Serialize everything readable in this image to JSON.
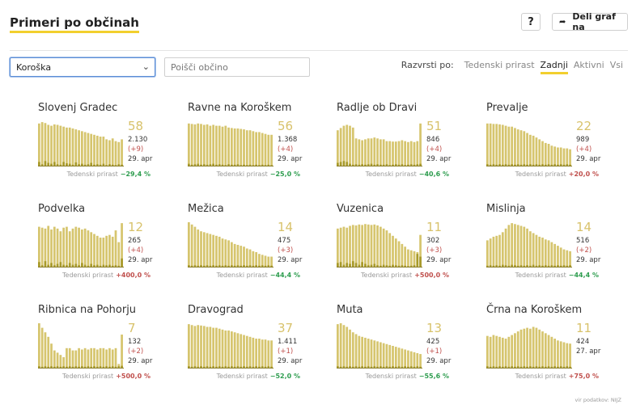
{
  "header": {
    "title": "Primeri po občinah",
    "help_label": "?",
    "share_label": "Deli graf na",
    "share_icon": "share-arrow-icon"
  },
  "filters": {
    "region_value": "Koroška",
    "search_placeholder": "Poišči občino",
    "sort_label": "Razvrsti po:",
    "sort_options": [
      "Tedenski prirast",
      "Zadnji",
      "Aktivni",
      "Vsi"
    ],
    "sort_active": "Zadnji"
  },
  "trend_label": "Tedenski prirast",
  "colors": {
    "bar": "#d6c56e",
    "bar_low": "#a89a2a",
    "accent": "#f2cf2e",
    "down": "#2e9d4f",
    "up": "#c0504d"
  },
  "cards": [
    {
      "name": "Slovenj Gradec",
      "active": "58",
      "total": "2.130",
      "delta": "(+9)",
      "date": "29. apr",
      "trend": "−29,4 %",
      "trend_dir": "down",
      "bars": [
        0.95,
        0.98,
        0.96,
        0.92,
        0.9,
        0.93,
        0.92,
        0.9,
        0.88,
        0.86,
        0.86,
        0.84,
        0.82,
        0.8,
        0.78,
        0.76,
        0.74,
        0.72,
        0.7,
        0.68,
        0.66,
        0.66,
        0.6,
        0.58,
        0.62,
        0.56,
        0.54,
        0.6
      ],
      "low": [
        0.1,
        0.05,
        0.12,
        0.08,
        0.06,
        0.1,
        0.05,
        0.04,
        0.1,
        0.07,
        0.06,
        0.04,
        0.09,
        0.05,
        0.06,
        0.04,
        0.05,
        0.08,
        0.04,
        0.05,
        0.04,
        0.06,
        0.03,
        0.05,
        0.04,
        0.03,
        0.05,
        0.04
      ]
    },
    {
      "name": "Ravne na Koroškem",
      "active": "56",
      "total": "1.368",
      "delta": "(+4)",
      "date": "29. apr",
      "trend": "−25,0 %",
      "trend_dir": "down",
      "bars": [
        0.95,
        0.94,
        0.93,
        0.95,
        0.94,
        0.92,
        0.93,
        0.9,
        0.92,
        0.9,
        0.9,
        0.88,
        0.9,
        0.86,
        0.85,
        0.84,
        0.84,
        0.83,
        0.82,
        0.8,
        0.8,
        0.78,
        0.76,
        0.76,
        0.74,
        0.72,
        0.7,
        0.7
      ],
      "low": [
        0.06,
        0.04,
        0.05,
        0.06,
        0.04,
        0.05,
        0.04,
        0.05,
        0.06,
        0.04,
        0.05,
        0.04,
        0.03,
        0.05,
        0.04,
        0.04,
        0.05,
        0.03,
        0.04,
        0.03,
        0.04,
        0.03,
        0.04,
        0.03,
        0.04,
        0.03,
        0.04,
        0.03
      ]
    },
    {
      "name": "Radlje ob Dravi",
      "active": "51",
      "total": "846",
      "delta": "(+4)",
      "date": "29. apr",
      "trend": "−40,6 %",
      "trend_dir": "down",
      "bars": [
        0.8,
        0.85,
        0.9,
        0.92,
        0.9,
        0.86,
        0.62,
        0.6,
        0.58,
        0.6,
        0.62,
        0.62,
        0.64,
        0.62,
        0.6,
        0.6,
        0.56,
        0.56,
        0.55,
        0.55,
        0.56,
        0.58,
        0.56,
        0.54,
        0.56,
        0.54,
        0.56,
        0.95
      ],
      "low": [
        0.08,
        0.1,
        0.12,
        0.1,
        0.06,
        0.04,
        0.05,
        0.04,
        0.05,
        0.04,
        0.05,
        0.06,
        0.04,
        0.05,
        0.04,
        0.04,
        0.05,
        0.03,
        0.04,
        0.05,
        0.04,
        0.05,
        0.03,
        0.04,
        0.05,
        0.04,
        0.05,
        0.06
      ]
    },
    {
      "name": "Prevalje",
      "active": "22",
      "total": "989",
      "delta": "(+4)",
      "date": "29. apr",
      "trend": "+20,0 %",
      "trend_dir": "up",
      "bars": [
        0.95,
        0.95,
        0.94,
        0.94,
        0.93,
        0.92,
        0.9,
        0.88,
        0.88,
        0.85,
        0.82,
        0.8,
        0.78,
        0.74,
        0.7,
        0.68,
        0.64,
        0.6,
        0.56,
        0.52,
        0.5,
        0.46,
        0.44,
        0.42,
        0.42,
        0.4,
        0.4,
        0.38
      ],
      "low": [
        0.05,
        0.04,
        0.05,
        0.04,
        0.05,
        0.04,
        0.05,
        0.04,
        0.05,
        0.04,
        0.05,
        0.04,
        0.05,
        0.04,
        0.05,
        0.04,
        0.05,
        0.04,
        0.05,
        0.04,
        0.05,
        0.04,
        0.05,
        0.04,
        0.05,
        0.04,
        0.05,
        0.04
      ]
    },
    {
      "name": "Podvelka",
      "active": "12",
      "total": "265",
      "delta": "(+4)",
      "date": "29. apr",
      "trend": "+400,0 %",
      "trend_dir": "up",
      "bars": [
        0.9,
        0.88,
        0.86,
        0.92,
        0.84,
        0.9,
        0.86,
        0.8,
        0.88,
        0.9,
        0.8,
        0.86,
        0.9,
        0.88,
        0.84,
        0.86,
        0.82,
        0.78,
        0.74,
        0.7,
        0.66,
        0.66,
        0.7,
        0.72,
        0.68,
        0.82,
        0.56,
        0.98
      ],
      "low": [
        0.12,
        0.05,
        0.14,
        0.06,
        0.1,
        0.05,
        0.08,
        0.12,
        0.06,
        0.05,
        0.1,
        0.06,
        0.08,
        0.05,
        0.1,
        0.06,
        0.04,
        0.08,
        0.05,
        0.06,
        0.04,
        0.06,
        0.05,
        0.06,
        0.04,
        0.05,
        0.04,
        0.2
      ]
    },
    {
      "name": "Mežica",
      "active": "14",
      "total": "475",
      "delta": "(+3)",
      "date": "29. apr",
      "trend": "−44,4 %",
      "trend_dir": "down",
      "bars": [
        1.0,
        0.95,
        0.9,
        0.84,
        0.8,
        0.78,
        0.76,
        0.74,
        0.72,
        0.7,
        0.68,
        0.64,
        0.62,
        0.6,
        0.56,
        0.52,
        0.5,
        0.48,
        0.46,
        0.42,
        0.4,
        0.36,
        0.34,
        0.3,
        0.28,
        0.26,
        0.24,
        0.24
      ],
      "low": [
        0.05,
        0.04,
        0.05,
        0.04,
        0.05,
        0.04,
        0.05,
        0.04,
        0.05,
        0.04,
        0.05,
        0.04,
        0.05,
        0.04,
        0.05,
        0.04,
        0.05,
        0.04,
        0.05,
        0.04,
        0.05,
        0.04,
        0.05,
        0.04,
        0.05,
        0.04,
        0.05,
        0.04
      ]
    },
    {
      "name": "Vuzenica",
      "active": "11",
      "total": "302",
      "delta": "(+3)",
      "date": "29. apr",
      "trend": "+500,0 %",
      "trend_dir": "up",
      "bars": [
        0.86,
        0.88,
        0.9,
        0.88,
        0.92,
        0.94,
        0.93,
        0.95,
        0.94,
        0.96,
        0.95,
        0.94,
        0.95,
        0.93,
        0.9,
        0.86,
        0.82,
        0.76,
        0.7,
        0.64,
        0.58,
        0.52,
        0.46,
        0.4,
        0.38,
        0.36,
        0.34,
        0.72
      ],
      "low": [
        0.1,
        0.12,
        0.06,
        0.1,
        0.08,
        0.14,
        0.1,
        0.06,
        0.12,
        0.08,
        0.05,
        0.06,
        0.08,
        0.05,
        0.04,
        0.06,
        0.05,
        0.04,
        0.06,
        0.05,
        0.04,
        0.05,
        0.04,
        0.03,
        0.04,
        0.05,
        0.3,
        0.24
      ]
    },
    {
      "name": "Mislinja",
      "active": "14",
      "total": "516",
      "delta": "(+2)",
      "date": "29. apr",
      "trend": "−44,4 %",
      "trend_dir": "down",
      "bars": [
        0.6,
        0.64,
        0.68,
        0.7,
        0.72,
        0.78,
        0.86,
        0.94,
        0.98,
        0.96,
        0.94,
        0.92,
        0.9,
        0.86,
        0.8,
        0.76,
        0.72,
        0.68,
        0.66,
        0.62,
        0.6,
        0.56,
        0.52,
        0.48,
        0.44,
        0.4,
        0.38,
        0.36
      ],
      "low": [
        0.04,
        0.05,
        0.04,
        0.05,
        0.04,
        0.06,
        0.05,
        0.04,
        0.06,
        0.05,
        0.04,
        0.05,
        0.04,
        0.05,
        0.04,
        0.06,
        0.04,
        0.05,
        0.04,
        0.05,
        0.04,
        0.05,
        0.04,
        0.05,
        0.04,
        0.05,
        0.04,
        0.05
      ]
    },
    {
      "name": "Ribnica na Pohorju",
      "active": "7",
      "total": "132",
      "delta": "(+2)",
      "date": "29. apr",
      "trend": "+500,0 %",
      "trend_dir": "up",
      "bars": [
        1.0,
        0.9,
        0.8,
        0.7,
        0.55,
        0.4,
        0.35,
        0.3,
        0.25,
        0.45,
        0.45,
        0.4,
        0.4,
        0.45,
        0.42,
        0.45,
        0.42,
        0.45,
        0.45,
        0.42,
        0.45,
        0.45,
        0.42,
        0.45,
        0.42,
        0.45,
        0.1,
        0.75
      ],
      "low": [
        0.05,
        0.04,
        0.05,
        0.04,
        0.05,
        0.04,
        0.05,
        0.04,
        0.05,
        0.04,
        0.05,
        0.04,
        0.05,
        0.04,
        0.05,
        0.04,
        0.05,
        0.04,
        0.05,
        0.04,
        0.05,
        0.04,
        0.05,
        0.04,
        0.05,
        0.04,
        0.05,
        0.06
      ]
    },
    {
      "name": "Dravograd",
      "active": "37",
      "total": "1.411",
      "delta": "(+1)",
      "date": "29. apr",
      "trend": "−52,0 %",
      "trend_dir": "down",
      "bars": [
        0.98,
        0.96,
        0.94,
        0.96,
        0.95,
        0.94,
        0.92,
        0.92,
        0.9,
        0.9,
        0.88,
        0.86,
        0.84,
        0.84,
        0.82,
        0.8,
        0.78,
        0.76,
        0.74,
        0.72,
        0.7,
        0.68,
        0.66,
        0.66,
        0.64,
        0.64,
        0.62,
        0.62
      ],
      "low": [
        0.05,
        0.04,
        0.05,
        0.04,
        0.05,
        0.04,
        0.05,
        0.04,
        0.05,
        0.04,
        0.05,
        0.04,
        0.05,
        0.04,
        0.05,
        0.04,
        0.05,
        0.04,
        0.05,
        0.04,
        0.05,
        0.04,
        0.05,
        0.04,
        0.05,
        0.04,
        0.05,
        0.04
      ]
    },
    {
      "name": "Muta",
      "active": "13",
      "total": "425",
      "delta": "(+1)",
      "date": "29. apr",
      "trend": "−55,6 %",
      "trend_dir": "down",
      "bars": [
        0.98,
        1.0,
        0.96,
        0.92,
        0.86,
        0.8,
        0.76,
        0.72,
        0.7,
        0.68,
        0.66,
        0.64,
        0.62,
        0.6,
        0.58,
        0.56,
        0.54,
        0.52,
        0.5,
        0.48,
        0.46,
        0.44,
        0.42,
        0.4,
        0.38,
        0.36,
        0.34,
        0.32
      ],
      "low": [
        0.05,
        0.04,
        0.05,
        0.04,
        0.05,
        0.04,
        0.05,
        0.04,
        0.05,
        0.04,
        0.05,
        0.04,
        0.05,
        0.04,
        0.05,
        0.04,
        0.05,
        0.04,
        0.05,
        0.04,
        0.05,
        0.04,
        0.05,
        0.04,
        0.05,
        0.04,
        0.05,
        0.04
      ]
    },
    {
      "name": "Črna na Koroškem",
      "active": "11",
      "total": "424",
      "date": "27. apr",
      "trend": "+75,0 %",
      "trend_dir": "up",
      "bars": [
        0.72,
        0.7,
        0.74,
        0.72,
        0.7,
        0.68,
        0.66,
        0.7,
        0.74,
        0.78,
        0.82,
        0.86,
        0.88,
        0.9,
        0.88,
        0.92,
        0.9,
        0.86,
        0.82,
        0.78,
        0.74,
        0.7,
        0.66,
        0.62,
        0.6,
        0.58,
        0.56,
        0.55
      ],
      "low": [
        0.05,
        0.04,
        0.05,
        0.04,
        0.05,
        0.04,
        0.05,
        0.04,
        0.05,
        0.04,
        0.05,
        0.04,
        0.05,
        0.04,
        0.05,
        0.04,
        0.05,
        0.04,
        0.05,
        0.04,
        0.05,
        0.04,
        0.05,
        0.04,
        0.05,
        0.04,
        0.05,
        0.04
      ]
    }
  ],
  "footer": {
    "source": "vir podatkov: NIJZ"
  }
}
